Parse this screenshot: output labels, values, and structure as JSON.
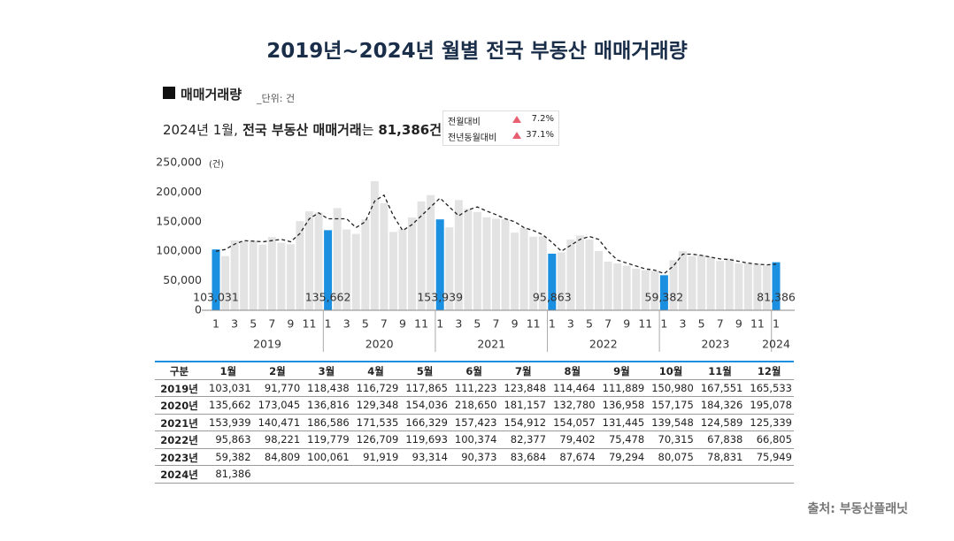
{
  "header": {
    "title": "2019년~2024년 월별 전국 부동산 매매거래량",
    "subtitle": "매매거래량",
    "unit": "_단위: 건",
    "summary": [
      {
        "text": "2024년 1월,",
        "bold": false
      },
      {
        "text": " 전국 부동산 매매거래",
        "bold": true
      },
      {
        "text": "는 ",
        "bold": false
      },
      {
        "text": "81,386건",
        "bold": true
      }
    ],
    "changes": [
      [
        "전월대비",
        "7.2%"
      ],
      [
        "전년동월대비",
        "37.1%"
      ]
    ]
  },
  "chart_data": {
    "type": "bar",
    "y_unit": "(건)",
    "categories": [
      "1",
      null,
      "3",
      null,
      "5",
      null,
      "7",
      null,
      "9",
      null,
      "11",
      null,
      "1",
      null,
      "3",
      null,
      "5",
      null,
      "7",
      null,
      "9",
      null,
      "11",
      null,
      "1",
      null,
      "3",
      null,
      "5",
      null,
      "7",
      null,
      "9",
      null,
      "11",
      null,
      "1",
      null,
      "3",
      null,
      "5",
      null,
      "7",
      null,
      "9",
      null,
      "11",
      null,
      "1",
      null,
      "3",
      null,
      "5",
      null,
      "7",
      null,
      "9",
      null,
      "11",
      null,
      "1"
    ],
    "groups": [
      "2019",
      "2020",
      "2021",
      "2022",
      "2023",
      "2024"
    ],
    "series": [
      {
        "type": "bar",
        "color": "#e3e3e3",
        "highlight_color": "#1b8fe0",
        "values": [
          103031,
          91770,
          118438,
          116729,
          117865,
          111223,
          123848,
          114464,
          111889,
          150980,
          167551,
          165533,
          135662,
          173045,
          136816,
          129348,
          154036,
          218650,
          181157,
          132780,
          136958,
          157175,
          184326,
          195078,
          153939,
          140471,
          186586,
          171535,
          166329,
          157423,
          154912,
          154057,
          131445,
          139548,
          124589,
          125339,
          95863,
          98221,
          119779,
          126709,
          119693,
          100374,
          82377,
          79402,
          75478,
          70315,
          67838,
          66805,
          59382,
          84809,
          100061,
          91919,
          93314,
          90373,
          83684,
          87674,
          79294,
          80075,
          78831,
          75949,
          81386
        ],
        "value_labels": [
          "103,031",
          null,
          null,
          null,
          null,
          null,
          null,
          null,
          null,
          null,
          null,
          null,
          "135,662",
          null,
          null,
          null,
          null,
          null,
          null,
          null,
          null,
          null,
          null,
          null,
          "153,939",
          null,
          null,
          null,
          null,
          null,
          null,
          null,
          null,
          null,
          null,
          null,
          "95,863",
          null,
          null,
          null,
          null,
          null,
          null,
          null,
          null,
          null,
          null,
          null,
          "59,382",
          null,
          null,
          null,
          null,
          null,
          null,
          null,
          null,
          null,
          null,
          null,
          "81,386"
        ]
      },
      {
        "type": "line",
        "color": "#222222",
        "dashed": true,
        "values": [
          100000,
          103000,
          112000,
          118000,
          117000,
          116000,
          118000,
          120000,
          116000,
          130000,
          155000,
          165000,
          155000,
          155000,
          155000,
          140000,
          150000,
          185000,
          195000,
          160000,
          135000,
          145000,
          160000,
          175000,
          190000,
          175000,
          160000,
          170000,
          175000,
          168000,
          162000,
          155000,
          150000,
          140000,
          135000,
          128000,
          115000,
          100000,
          110000,
          120000,
          125000,
          120000,
          100000,
          85000,
          80000,
          75000,
          70000,
          68000,
          62000,
          75000,
          95000,
          95000,
          93000,
          90000,
          87000,
          86000,
          83000,
          80000,
          78000,
          77000,
          78000
        ]
      }
    ],
    "ylim": [
      0,
      250000
    ],
    "yticks": [
      0,
      {
        "value": 50000,
        "label": "50,000"
      },
      {
        "value": 100000,
        "label": "100,000"
      },
      {
        "value": 150000,
        "label": "150,000"
      },
      {
        "value": 200000,
        "label": "200,000"
      },
      {
        "value": 250000,
        "label": "250,000"
      }
    ]
  },
  "table": {
    "header": [
      "구분",
      "1월",
      "2월",
      "3월",
      "4월",
      "5월",
      "6월",
      "7월",
      "8월",
      "9월",
      "10월",
      "11월",
      "12월"
    ],
    "rows": [
      [
        "2019년",
        "103,031",
        "91,770",
        "118,438",
        "116,729",
        "117,865",
        "111,223",
        "123,848",
        "114,464",
        "111,889",
        "150,980",
        "167,551",
        "165,533"
      ],
      [
        "2020년",
        "135,662",
        "173,045",
        "136,816",
        "129,348",
        "154,036",
        "218,650",
        "181,157",
        "132,780",
        "136,958",
        "157,175",
        "184,326",
        "195,078"
      ],
      [
        "2021년",
        "153,939",
        "140,471",
        "186,586",
        "171,535",
        "166,329",
        "157,423",
        "154,912",
        "154,057",
        "131,445",
        "139,548",
        "124,589",
        "125,339"
      ],
      [
        "2022년",
        "95,863",
        "98,221",
        "119,779",
        "126,709",
        "119,693",
        "100,374",
        "82,377",
        "79,402",
        "75,478",
        "70,315",
        "67,838",
        "66,805"
      ],
      [
        "2023년",
        "59,382",
        "84,809",
        "100,061",
        "91,919",
        "93,314",
        "90,373",
        "83,684",
        "87,674",
        "79,294",
        "80,075",
        "78,831",
        "75,949"
      ],
      [
        "2024년",
        "81,386"
      ]
    ]
  },
  "source": "출처: 부동산플래닛"
}
